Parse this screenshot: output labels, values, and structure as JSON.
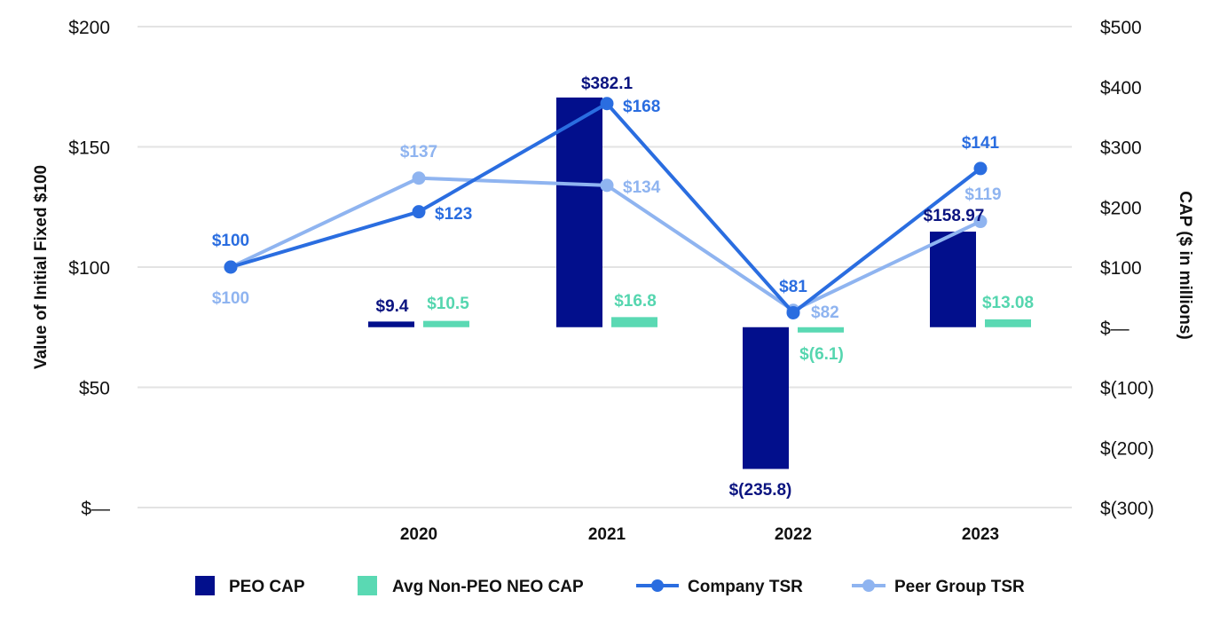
{
  "chart_data": {
    "type": "bar+line",
    "categories": [
      "2020",
      "2021",
      "2022",
      "2023"
    ],
    "left_axis": {
      "label": "Value of Initial Fixed $100",
      "range": [
        0,
        200
      ],
      "ticks": [
        {
          "value": 200,
          "label": "$200"
        },
        {
          "value": 150,
          "label": "$150"
        },
        {
          "value": 100,
          "label": "$100"
        },
        {
          "value": 50,
          "label": "$50"
        },
        {
          "value": 0,
          "label": "$—"
        }
      ]
    },
    "right_axis": {
      "label": "CAP ($ in millions)",
      "range": [
        -300,
        500
      ],
      "ticks": [
        {
          "value": 500,
          "label": "$500"
        },
        {
          "value": 400,
          "label": "$400"
        },
        {
          "value": 300,
          "label": "$300"
        },
        {
          "value": 200,
          "label": "$200"
        },
        {
          "value": 100,
          "label": "$100"
        },
        {
          "value": 0,
          "label": "$—"
        },
        {
          "value": -100,
          "label": "$(100)"
        },
        {
          "value": -200,
          "label": "$(200)"
        },
        {
          "value": -300,
          "label": "$(300)"
        }
      ]
    },
    "grid": true,
    "legend_position": "bottom",
    "bar_series": [
      {
        "name": "PEO CAP",
        "color": "#020f8c",
        "label_color": "#0b1480",
        "axis": "right",
        "values": [
          9.4,
          382.1,
          -235.8,
          158.97
        ],
        "labels": [
          "$9.4",
          "$382.1",
          "$(235.8)",
          "$158.97"
        ]
      },
      {
        "name": "Avg Non-PEO NEO CAP",
        "color": "#5ad9b3",
        "label_color": "#55d6af",
        "axis": "right",
        "values": [
          10.5,
          16.8,
          -6.1,
          13.08
        ],
        "labels": [
          "$10.5",
          "$16.8",
          "$(6.1)",
          "$13.08"
        ]
      }
    ],
    "line_points": [
      "base",
      "2020",
      "2021",
      "2022",
      "2023"
    ],
    "line_series": [
      {
        "name": "Company TSR",
        "color": "#2a6de0",
        "axis": "left",
        "values": [
          100,
          123,
          168,
          81,
          141
        ],
        "labels": [
          "$100",
          "$123",
          "$168",
          "$81",
          "$141"
        ]
      },
      {
        "name": "Peer Group TSR",
        "color": "#8fb4f0",
        "axis": "left",
        "values": [
          100,
          137,
          134,
          82,
          119
        ],
        "labels": [
          "$100",
          "$137",
          "$134",
          "$82",
          "$119"
        ]
      }
    ]
  }
}
